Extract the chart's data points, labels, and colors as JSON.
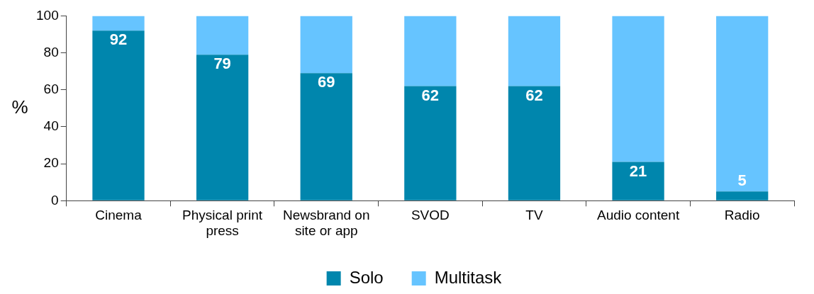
{
  "chart_data": {
    "type": "bar",
    "stacked": true,
    "ylabel": "%",
    "categories": [
      "Cinema",
      "Physical print press",
      "Newsbrand on site or app",
      "SVOD",
      "TV",
      "Audio content",
      "Radio"
    ],
    "series": [
      {
        "name": "Solo",
        "color": "#0086ad",
        "values": [
          92,
          79,
          69,
          62,
          62,
          21,
          5
        ],
        "value_labels": [
          "92",
          "79",
          "69",
          "62",
          "62",
          "21",
          "5"
        ]
      },
      {
        "name": "Multitask",
        "color": "#66c4ff",
        "values": [
          8,
          21,
          31,
          38,
          38,
          79,
          95
        ]
      }
    ],
    "ylim": [
      0,
      100
    ],
    "yticks": [
      0,
      20,
      40,
      60,
      80,
      100
    ],
    "grid": false,
    "legend": "bottom"
  }
}
